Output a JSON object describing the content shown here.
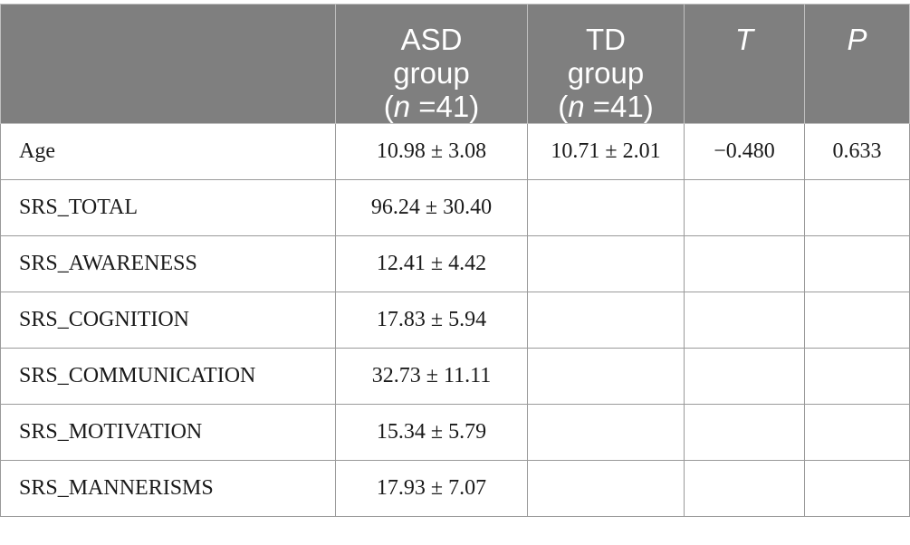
{
  "table": {
    "headers": {
      "col0": "",
      "asd": {
        "line1": "ASD",
        "line2": "group",
        "n_symbol": "n",
        "n_value": " =41"
      },
      "td": {
        "line1": "TD",
        "line2": "group",
        "n_symbol": "n",
        "n_value": " =41"
      },
      "t": "T",
      "p": "P"
    },
    "rows": [
      {
        "label": "Age",
        "asd": "10.98 ± 3.08",
        "td": "10.71 ± 2.01",
        "t": "−0.480",
        "p": "0.633"
      },
      {
        "label": "SRS_TOTAL",
        "asd": "96.24 ± 30.40",
        "td": "",
        "t": "",
        "p": ""
      },
      {
        "label": "SRS_AWARENESS",
        "asd": "12.41 ± 4.42",
        "td": "",
        "t": "",
        "p": ""
      },
      {
        "label": "SRS_COGNITION",
        "asd": "17.83 ± 5.94",
        "td": "",
        "t": "",
        "p": ""
      },
      {
        "label": "SRS_COMMUNICATION",
        "asd": "32.73 ± 11.11",
        "td": "",
        "t": "",
        "p": ""
      },
      {
        "label": "SRS_MOTIVATION",
        "asd": "15.34 ± 5.79",
        "td": "",
        "t": "",
        "p": ""
      },
      {
        "label": "SRS_MANNERISMS",
        "asd": "17.93 ± 7.07",
        "td": "",
        "t": "",
        "p": ""
      }
    ]
  }
}
